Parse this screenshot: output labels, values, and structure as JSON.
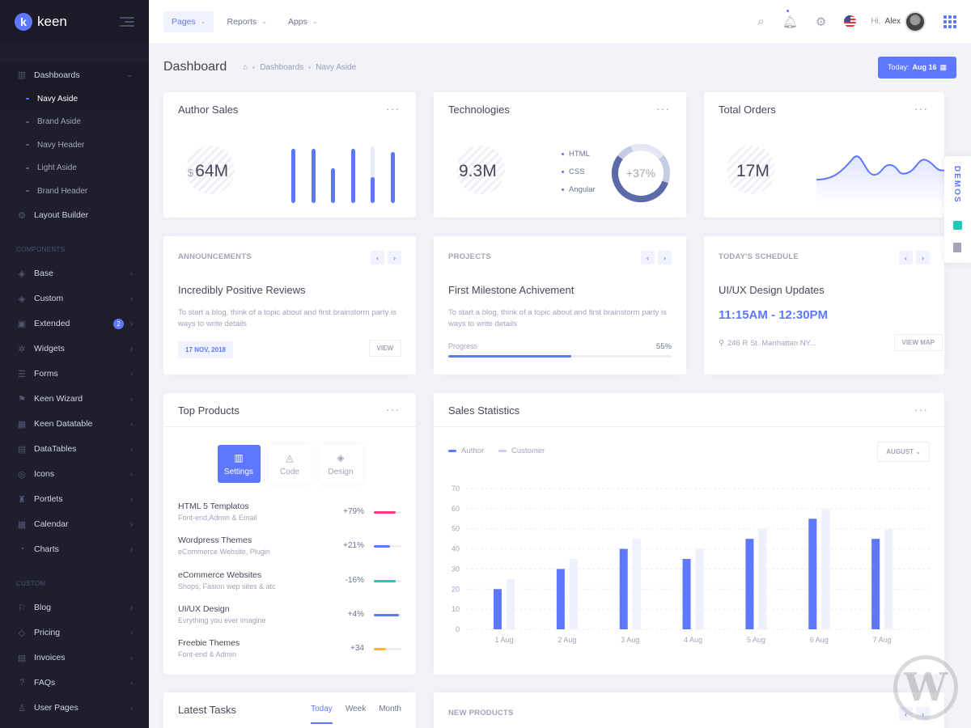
{
  "brand": {
    "name": "keen",
    "logo_letter": "k"
  },
  "sidebar": {
    "dashboards": {
      "label": "Dashboards",
      "subitems": [
        "Navy Aside",
        "Brand Aside",
        "Navy Header",
        "Light Aside",
        "Brand Header"
      ],
      "active": "Navy Aside"
    },
    "layout_builder": "Layout Builder",
    "components_section": "COMPONENTS",
    "components": [
      {
        "label": "Base",
        "icon": "layers-icon"
      },
      {
        "label": "Custom",
        "icon": "layers-icon"
      },
      {
        "label": "Extended",
        "icon": "box-icon",
        "badge": "2"
      },
      {
        "label": "Widgets",
        "icon": "settings-icon"
      },
      {
        "label": "Forms",
        "icon": "list-icon"
      },
      {
        "label": "Keen Wizard",
        "icon": "sign-icon"
      },
      {
        "label": "Keen Datatable",
        "icon": "table-icon"
      },
      {
        "label": "DataTables",
        "icon": "grid-icon"
      },
      {
        "label": "Icons",
        "icon": "glasses-icon"
      },
      {
        "label": "Portlets",
        "icon": "cup-icon"
      },
      {
        "label": "Calendar",
        "icon": "calendar-icon"
      },
      {
        "label": "Charts",
        "icon": "chart-icon"
      }
    ],
    "custom_section": "CUSTOM",
    "custom": [
      {
        "label": "Blog",
        "icon": "flag-icon"
      },
      {
        "label": "Pricing",
        "icon": "tag-icon"
      },
      {
        "label": "Invoices",
        "icon": "doc-icon"
      },
      {
        "label": "FAQs",
        "icon": "question-icon"
      },
      {
        "label": "User Pages",
        "icon": "user-icon"
      }
    ]
  },
  "header": {
    "nav": [
      "Pages",
      "Reports",
      "Apps"
    ],
    "greeting": "Hi,",
    "user": "Alex"
  },
  "subheader": {
    "title": "Dashboard",
    "crumbs": [
      "Dashboards",
      "Navy Aside"
    ],
    "today_label": "Today:",
    "today_value": "Aug 16"
  },
  "author_sales": {
    "title": "Author Sales",
    "currency": "$",
    "value": "64M",
    "bars": [
      0.95,
      0.95,
      0.62,
      0.95,
      0.45,
      0.9
    ],
    "short_bar": [
      false,
      false,
      false,
      false,
      true,
      false
    ]
  },
  "technologies": {
    "title": "Technologies",
    "value": "9.3M",
    "items": [
      "HTML",
      "CSS",
      "Angular"
    ],
    "donut": "+37%"
  },
  "total_orders": {
    "title": "Total Orders",
    "value": "17M"
  },
  "announcements": {
    "label": "ANNOUNCEMENTS",
    "title": "Incredibly Positive Reviews",
    "desc": "To start a blog, think of a topic about and first brainstorm party is ways to write details",
    "date": "17 NOV, 2018",
    "button": "VIEW"
  },
  "projects": {
    "label": "PROJECTS",
    "title": "First Milestone Achivement",
    "desc": "To start a blog, think of a topic about and first brainstorm party is ways to write details",
    "progress_label": "Progress",
    "progress_value": "55%",
    "progress": 0.55
  },
  "schedule": {
    "label": "TODAY'S SCHEDULE",
    "title": "UI/UX Design Updates",
    "time": "11:15AM - 12:30PM",
    "address": "246 R St. Manhattan NY...",
    "button": "VIEW MAP"
  },
  "top_products": {
    "title": "Top Products",
    "tabs": [
      "Settings",
      "Code",
      "Design"
    ],
    "items": [
      {
        "name": "HTML 5 Templatos",
        "sub": "Font-end,Admin & Email",
        "value": "+79%",
        "fill": 0.79,
        "color": "#fd397a"
      },
      {
        "name": "Wordpress Themes",
        "sub": "eCommerce Website, Plugin",
        "value": "+21%",
        "fill": 0.6,
        "color": "#5d78ff"
      },
      {
        "name": "eCommerce Websites",
        "sub": "Shops, Fasion wep sites & atc",
        "value": "-16%",
        "fill": 0.8,
        "color": "#1dc9b7"
      },
      {
        "name": "UI/UX Design",
        "sub": "Evrything you ever imagine",
        "value": "+4%",
        "fill": 0.9,
        "color": "#5d78ff"
      },
      {
        "name": "Freebie Themes",
        "sub": "Font-end & Admin",
        "value": "+34",
        "fill": 0.45,
        "color": "#ffb822"
      }
    ]
  },
  "sales_statistics": {
    "title": "Sales Statistics",
    "select": "AUGUST",
    "colors": {
      "author": "#5d78ff",
      "customer": "#eef0fb"
    }
  },
  "chart_data": {
    "type": "bar",
    "categories": [
      "1 Aug",
      "2 Aug",
      "3 Aug",
      "4 Aug",
      "5 Aug",
      "6 Aug",
      "7 Aug"
    ],
    "series": [
      {
        "name": "Author",
        "values": [
          20,
          30,
          40,
          35,
          45,
          55,
          45
        ]
      },
      {
        "name": "Customer",
        "values": [
          25,
          35,
          45,
          40,
          50,
          60,
          50
        ]
      }
    ],
    "ylim": [
      0,
      70
    ],
    "yticks": [
      0,
      10,
      20,
      30,
      40,
      50,
      60,
      70
    ],
    "grid": true,
    "legend": "top-left"
  },
  "latest_tasks": {
    "title": "Latest Tasks",
    "tabs": [
      "Today",
      "Week",
      "Month"
    ]
  },
  "new_products": {
    "label": "NEW PRODUCTS"
  },
  "demos": {
    "label": "DEMOS"
  },
  "watermark": "W"
}
